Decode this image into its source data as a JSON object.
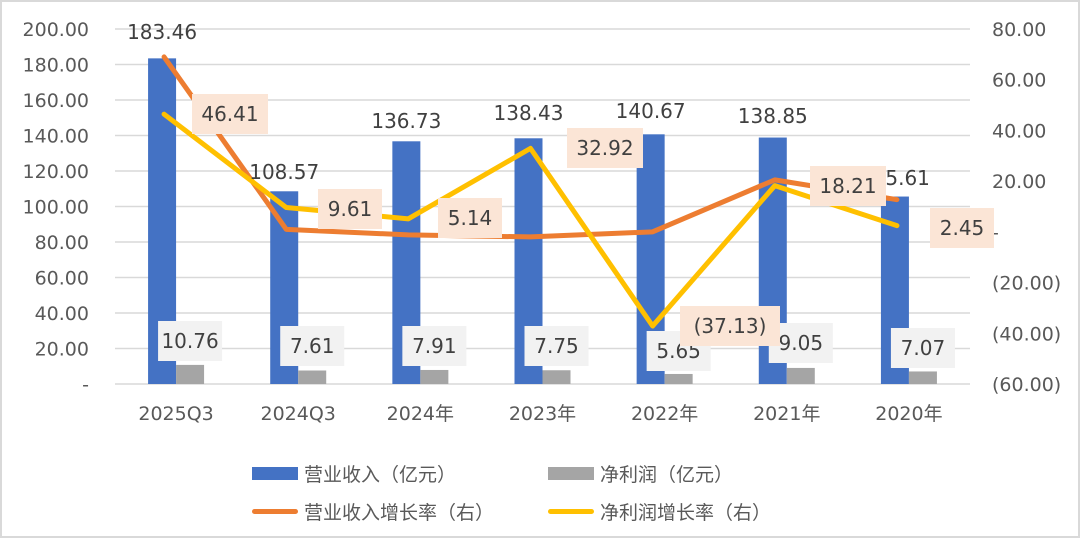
{
  "chart_data": {
    "type": "bar+line",
    "title": "",
    "categories": [
      "2025Q3",
      "2024Q3",
      "2024年",
      "2023年",
      "2022年",
      "2021年",
      "2020年"
    ],
    "series": [
      {
        "name": "营业收入（亿元）",
        "type": "bar",
        "axis": "left",
        "color": "#4472C4",
        "values": [
          183.46,
          108.57,
          136.73,
          138.43,
          140.67,
          138.85,
          105.61
        ],
        "labels": [
          "183.46",
          "108.57",
          "136.73",
          "138.43",
          "140.67",
          "138.85",
          "105.61"
        ]
      },
      {
        "name": "净利润（亿元）",
        "type": "bar",
        "axis": "left",
        "color": "#A5A5A5",
        "values": [
          10.76,
          7.61,
          7.91,
          7.75,
          5.65,
          9.05,
          7.07
        ],
        "labels": [
          "10.76",
          "7.61",
          "7.91",
          "7.75",
          "5.65",
          "9.05",
          "7.07"
        ]
      },
      {
        "name": "营业收入增长率（右）",
        "type": "line",
        "axis": "right",
        "color": "#ED7D31",
        "values": [
          69.0,
          1.0,
          -1.2,
          -2.0,
          0.0,
          20.5,
          12.7
        ]
      },
      {
        "name": "净利润增长率（右）",
        "type": "line",
        "axis": "right",
        "color": "#FFC000",
        "values": [
          46.41,
          9.61,
          5.14,
          32.92,
          -37.13,
          18.21,
          2.45
        ],
        "labels": [
          "46.41",
          "9.61",
          "5.14",
          "32.92",
          "(37.13)",
          "18.21",
          "2.45"
        ]
      }
    ],
    "y_left": {
      "ylim": [
        0,
        200
      ],
      "ticks": [
        "-",
        "20.00",
        "40.00",
        "60.00",
        "80.00",
        "100.00",
        "120.00",
        "140.00",
        "160.00",
        "180.00",
        "200.00"
      ]
    },
    "y_right": {
      "ylim": [
        -60,
        80
      ],
      "ticks": [
        "(60.00)",
        "(40.00)",
        "(20.00)",
        "-",
        "20.00",
        "40.00",
        "60.00",
        "80.00"
      ]
    },
    "xlabel": "",
    "ylabel": "",
    "grid": true,
    "legend_position": "bottom"
  },
  "legend": {
    "items": [
      {
        "label": "营业收入（亿元）",
        "color": "#4472C4",
        "kind": "bar"
      },
      {
        "label": "净利润（亿元）",
        "color": "#A5A5A5",
        "kind": "bar"
      },
      {
        "label": "营业收入增长率（右）",
        "color": "#ED7D31",
        "kind": "line"
      },
      {
        "label": "净利润增长率（右）",
        "color": "#FFC000",
        "kind": "line"
      }
    ]
  }
}
